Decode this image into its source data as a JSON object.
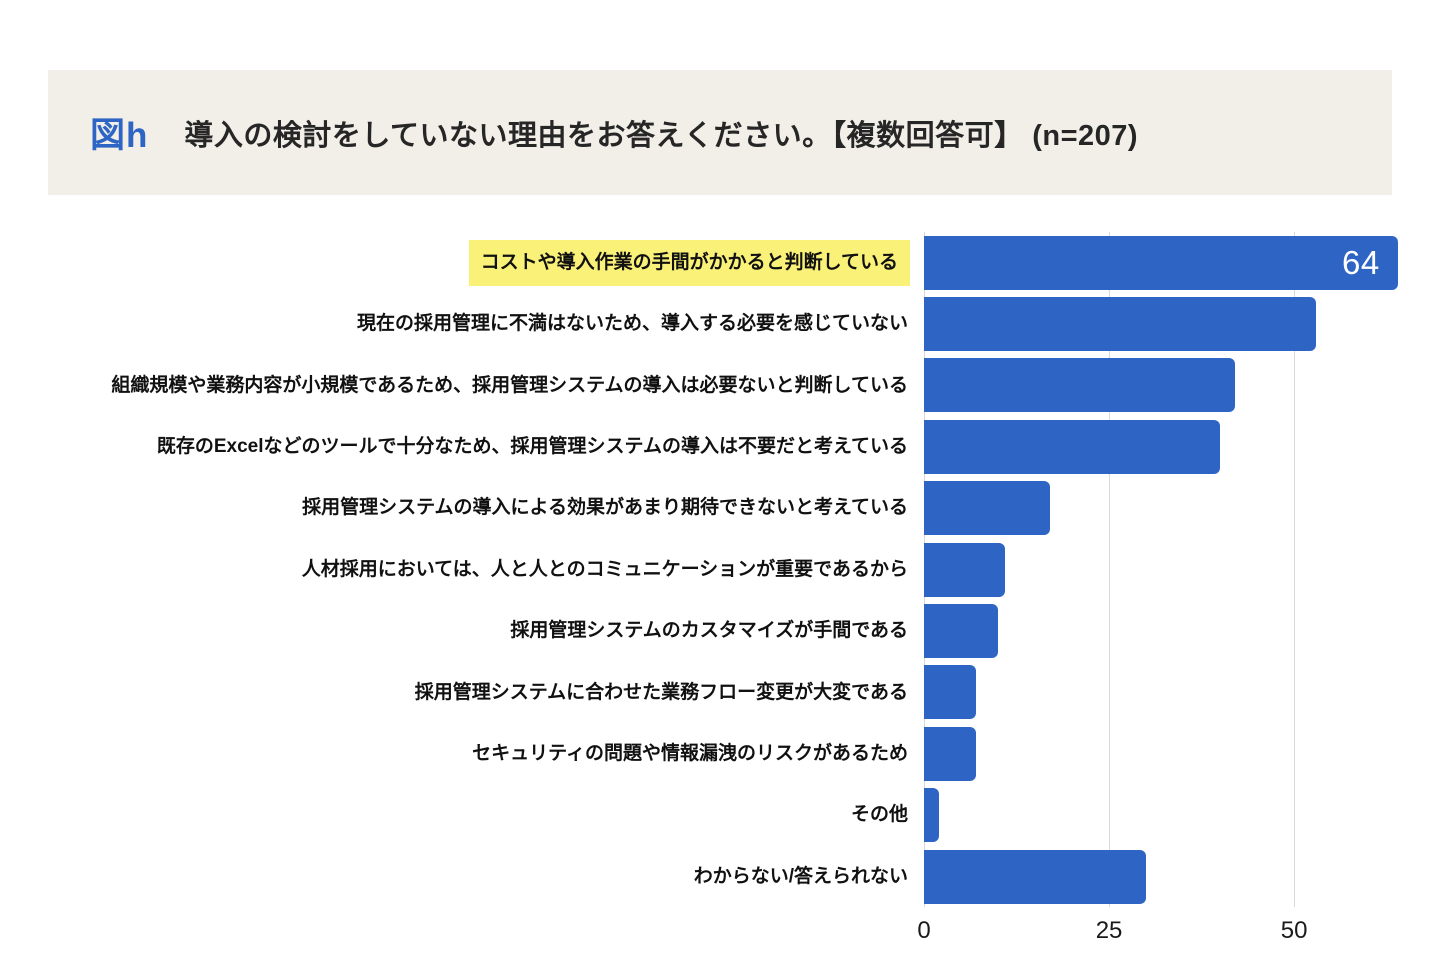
{
  "header": {
    "figure_label": "図h",
    "title": "導入の検討をしていない理由をお答えください。【複数回答可】 (n=207)"
  },
  "chart_data": {
    "type": "bar",
    "orientation": "horizontal",
    "title": "導入の検討をしていない理由をお答えください。【複数回答可】 (n=207)",
    "categories": [
      "コストや導入作業の手間がかかると判断している",
      "現在の採用管理に不満はないため、導入する必要を感じていない",
      "組織規模や業務内容が小規模であるため、採用管理システムの導入は必要ないと判断している",
      "既存のExcelなどのツールで十分なため、採用管理システムの導入は不要だと考えている",
      "採用管理システムの導入による効果があまり期待できないと考えている",
      "人材採用においては、人と人とのコミュニケーションが重要であるから",
      "採用管理システムのカスタマイズが手間である",
      "採用管理システムに合わせた業務フロー変更が大変である",
      "セキュリティの問題や情報漏洩のリスクがあるため",
      "その他",
      "わからない/答えられない"
    ],
    "values": [
      64,
      53,
      42,
      40,
      17,
      11,
      10,
      7,
      7,
      2,
      30
    ],
    "highlighted_category_index": 0,
    "value_label_indices": [
      0
    ],
    "value_label_text": "64",
    "xlim": [
      0,
      64.3
    ],
    "xticks": [
      0,
      25,
      50
    ],
    "grid": true,
    "legend": "none"
  },
  "colors": {
    "bar": "#2e65c4",
    "figure_label": "#2e65c4",
    "highlight": "#faf178",
    "band_background": "#f2efe8",
    "gridline": "#d9d9d9",
    "value_text": "#ffffff"
  }
}
